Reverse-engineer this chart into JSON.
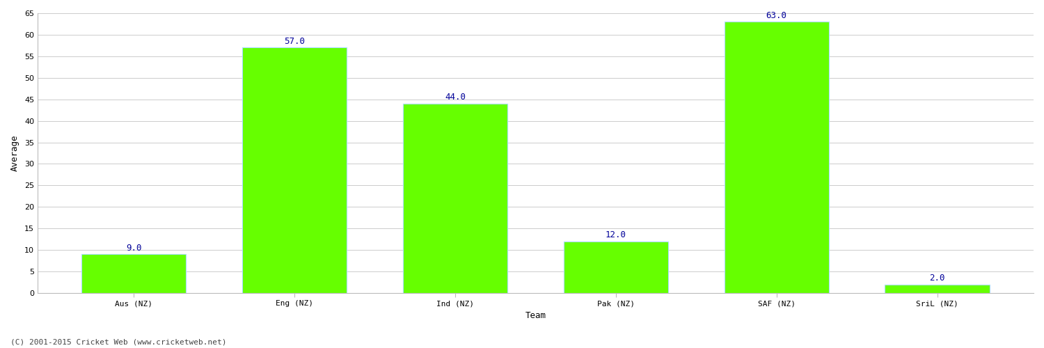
{
  "categories": [
    "Aus (NZ)",
    "Eng (NZ)",
    "Ind (NZ)",
    "Pak (NZ)",
    "SAF (NZ)",
    "SriL (NZ)"
  ],
  "values": [
    9.0,
    57.0,
    44.0,
    12.0,
    63.0,
    2.0
  ],
  "bar_color": "#66ff00",
  "bar_edge_color": "#aaddff",
  "label_color": "#000099",
  "ylabel": "Average",
  "xlabel": "Team",
  "ylim": [
    0,
    65
  ],
  "yticks": [
    0,
    5,
    10,
    15,
    20,
    25,
    30,
    35,
    40,
    45,
    50,
    55,
    60,
    65
  ],
  "grid_color": "#cccccc",
  "bg_color": "#ffffff",
  "footer": "(C) 2001-2015 Cricket Web (www.cricketweb.net)",
  "label_fontsize": 9,
  "axis_label_fontsize": 9,
  "tick_fontsize": 8,
  "footer_fontsize": 8,
  "bar_width": 0.65
}
